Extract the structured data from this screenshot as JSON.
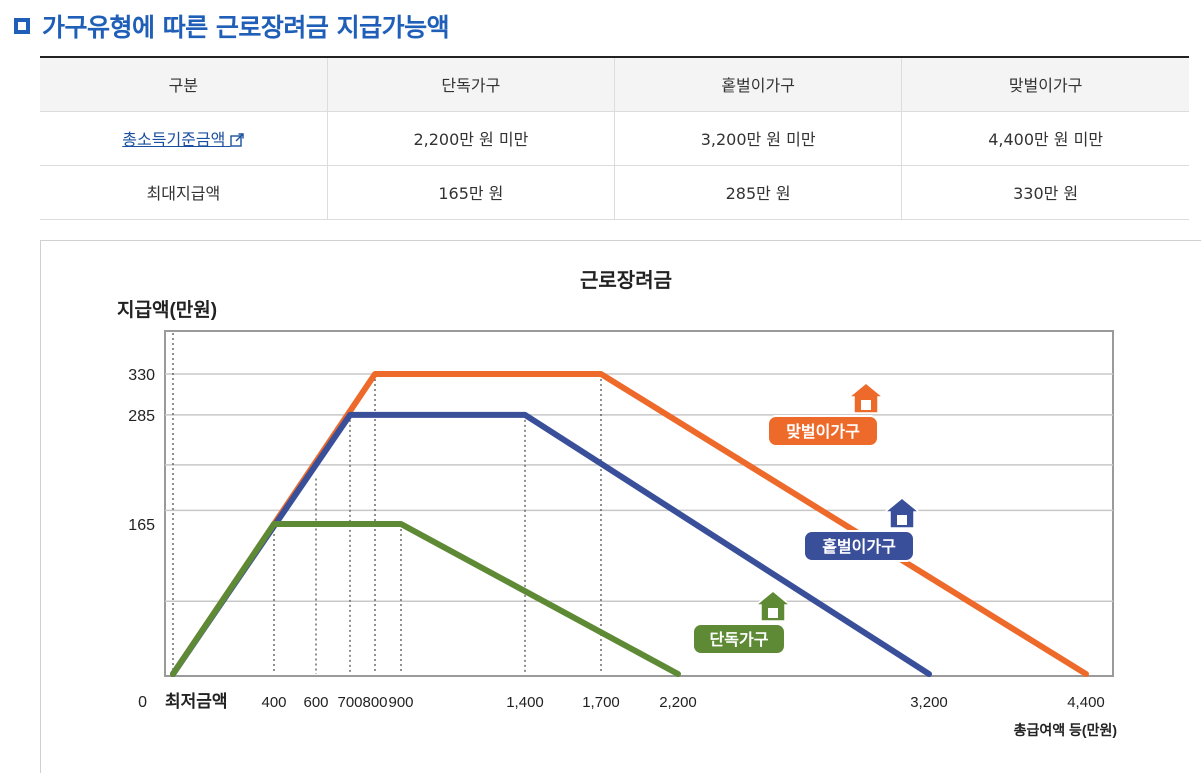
{
  "heading": {
    "title": "가구유형에 따른 근로장려금 지급가능액"
  },
  "table": {
    "headers": [
      "구분",
      "단독가구",
      "홑벌이가구",
      "맞벌이가구"
    ],
    "rows": [
      {
        "label": "총소득기준금액",
        "values": [
          "2,200만 원 미만",
          "3,200만 원 미만",
          "4,400만 원 미만"
        ]
      },
      {
        "label": "최대지급액",
        "values": [
          "165만 원",
          "285만 원",
          "330만 원"
        ]
      }
    ]
  },
  "chart_data": {
    "type": "line",
    "title": "근로장려금",
    "ylabel": "지급액(만원)",
    "xlabel": "총급여액 등(만원)",
    "x_ticks": [
      "최저금액",
      "400",
      "600",
      "700",
      "800",
      "900",
      "1,400",
      "1,700",
      "2,200",
      "3,200",
      "4,400"
    ],
    "y_ticks": [
      "0",
      "165",
      "285",
      "330"
    ],
    "ylim": [
      0,
      330
    ],
    "grid": true,
    "series": [
      {
        "name": "맞벌이가구",
        "color": "#ee6a2b",
        "points": [
          [
            0,
            0
          ],
          [
            800,
            330
          ],
          [
            1700,
            330
          ],
          [
            4400,
            0
          ]
        ]
      },
      {
        "name": "홑벌이가구",
        "color": "#3a4f99",
        "points": [
          [
            0,
            0
          ],
          [
            700,
            285
          ],
          [
            1400,
            285
          ],
          [
            3200,
            0
          ]
        ]
      },
      {
        "name": "단독가구",
        "color": "#5e8a35",
        "points": [
          [
            0,
            0
          ],
          [
            400,
            165
          ],
          [
            900,
            165
          ],
          [
            2200,
            0
          ]
        ]
      }
    ]
  }
}
